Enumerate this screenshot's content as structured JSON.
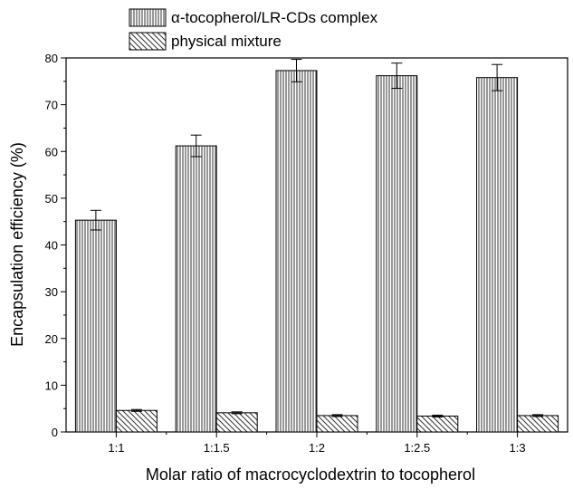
{
  "chart_data": {
    "type": "bar",
    "title": "",
    "xlabel": "Molar ratio of macrocyclodextrin to tocopherol",
    "ylabel": "Encapsulation efficiency (%)",
    "ylim": [
      0,
      80
    ],
    "yticks": [
      0,
      10,
      20,
      30,
      40,
      50,
      60,
      70,
      80
    ],
    "categories": [
      "1:1",
      "1:1.5",
      "1:2",
      "1:2.5",
      "1:3"
    ],
    "series": [
      {
        "name": "α-tocopherol/LR-CDs complex",
        "pattern": "vertical-lines",
        "values": [
          45.3,
          61.2,
          77.3,
          76.2,
          75.8
        ],
        "errors": [
          2.1,
          2.3,
          2.4,
          2.7,
          2.8
        ]
      },
      {
        "name": "physical mixture",
        "pattern": "diagonal-hatch",
        "values": [
          4.6,
          4.1,
          3.5,
          3.4,
          3.5
        ],
        "errors": [
          0.2,
          0.2,
          0.2,
          0.2,
          0.2
        ]
      }
    ],
    "legend_position": "top-center",
    "grid": false
  }
}
